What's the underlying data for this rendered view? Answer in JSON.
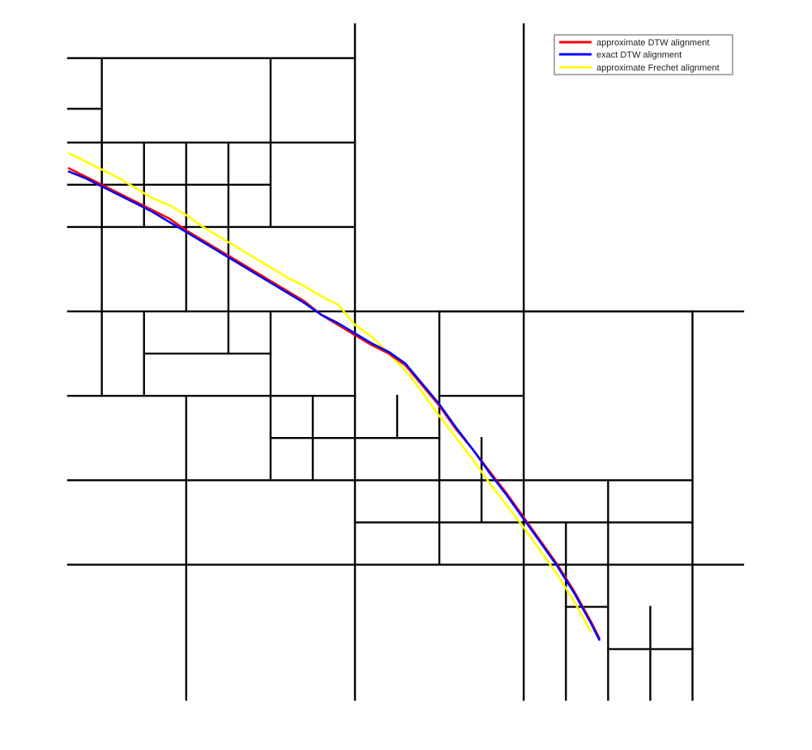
{
  "chart_data": {
    "type": "line",
    "title": "",
    "xlabel": "",
    "ylabel": "",
    "axes_visible": false,
    "xlim": [
      0,
      40
    ],
    "ylim": [
      0,
      40
    ],
    "legend": {
      "placement": "top-right"
    },
    "colors": {
      "approximate DTW alignment": "#ff0000",
      "exact DTW alignment": "#0000ff",
      "approximate Frechet alignment": "#ffff00",
      "partition": "#000000"
    },
    "partition_segments": [
      [
        [
          17,
          0
        ],
        [
          17,
          40
        ]
      ],
      [
        [
          27,
          0
        ],
        [
          27,
          40
        ]
      ],
      [
        [
          0,
          28
        ],
        [
          17,
          28
        ]
      ],
      [
        [
          0,
          38
        ],
        [
          17,
          38
        ]
      ],
      [
        [
          2,
          28
        ],
        [
          2,
          38
        ]
      ],
      [
        [
          12,
          28
        ],
        [
          12,
          38
        ]
      ],
      [
        [
          0,
          35
        ],
        [
          2,
          35
        ]
      ],
      [
        [
          0,
          33
        ],
        [
          17,
          33
        ]
      ],
      [
        [
          0,
          23
        ],
        [
          40,
          23
        ]
      ],
      [
        [
          0,
          18
        ],
        [
          17,
          18
        ]
      ],
      [
        [
          0,
          8
        ],
        [
          40,
          8
        ]
      ],
      [
        [
          2,
          18
        ],
        [
          2,
          33
        ]
      ],
      [
        [
          0,
          13
        ],
        [
          37,
          13
        ]
      ],
      [
        [
          7,
          0
        ],
        [
          7,
          18
        ]
      ],
      [
        [
          0,
          30.5
        ],
        [
          12,
          30.5
        ]
      ],
      [
        [
          4.5,
          28
        ],
        [
          4.5,
          33
        ]
      ],
      [
        [
          9.5,
          28
        ],
        [
          9.5,
          33
        ]
      ],
      [
        [
          7,
          23
        ],
        [
          7,
          33
        ]
      ],
      [
        [
          4.5,
          20.5
        ],
        [
          12,
          20.5
        ]
      ],
      [
        [
          4.5,
          18
        ],
        [
          4.5,
          23
        ]
      ],
      [
        [
          12,
          18
        ],
        [
          12,
          23
        ]
      ],
      [
        [
          9.5,
          20.5
        ],
        [
          9.5,
          28
        ]
      ],
      [
        [
          12,
          15.5
        ],
        [
          22,
          15.5
        ]
      ],
      [
        [
          12,
          13
        ],
        [
          12,
          18
        ]
      ],
      [
        [
          14.5,
          13
        ],
        [
          14.5,
          18
        ]
      ],
      [
        [
          22,
          23
        ],
        [
          37,
          23
        ]
      ],
      [
        [
          22,
          18
        ],
        [
          27,
          18
        ]
      ],
      [
        [
          22,
          13
        ],
        [
          22,
          23
        ]
      ],
      [
        [
          27,
          10.5
        ],
        [
          37,
          10.5
        ]
      ],
      [
        [
          17,
          10.5
        ],
        [
          27,
          10.5
        ]
      ],
      [
        [
          22,
          8
        ],
        [
          22,
          13
        ]
      ],
      [
        [
          24.5,
          10.5
        ],
        [
          24.5,
          15.5
        ]
      ],
      [
        [
          19.5,
          15.5
        ],
        [
          19.5,
          18
        ]
      ],
      [
        [
          32,
          0
        ],
        [
          32,
          13
        ]
      ],
      [
        [
          37,
          0
        ],
        [
          37,
          23
        ]
      ],
      [
        [
          29.5,
          0
        ],
        [
          29.5,
          10.5
        ]
      ],
      [
        [
          32,
          3
        ],
        [
          37,
          3
        ]
      ],
      [
        [
          34.5,
          0
        ],
        [
          34.5,
          5.5
        ]
      ],
      [
        [
          29.5,
          5.5
        ],
        [
          32,
          5.5
        ]
      ]
    ],
    "series": [
      {
        "name": "approximate DTW alignment",
        "x": [
          0,
          1,
          2,
          3,
          4,
          5,
          6,
          7,
          8,
          9,
          10,
          11,
          12,
          13,
          14,
          15,
          16,
          17,
          18,
          19,
          20,
          21,
          22,
          23,
          24,
          25,
          26,
          27,
          28,
          29,
          30,
          31,
          31.5
        ],
        "y": [
          31.5,
          31.0,
          30.5,
          30.0,
          29.5,
          29.0,
          28.5,
          27.8,
          27.2,
          26.6,
          26.0,
          25.4,
          24.8,
          24.2,
          23.6,
          22.8,
          22.2,
          21.6,
          21.0,
          20.5,
          19.8,
          18.6,
          17.4,
          16.0,
          14.8,
          13.5,
          12.2,
          10.8,
          9.4,
          8.0,
          6.4,
          4.6,
          3.6
        ]
      },
      {
        "name": "exact DTW alignment",
        "x": [
          0,
          1,
          2,
          3,
          4,
          5,
          6,
          7,
          8,
          9,
          10,
          11,
          12,
          13,
          14,
          15,
          16,
          17,
          18,
          19,
          20,
          21,
          22,
          23,
          24,
          25,
          26,
          27,
          28,
          29,
          30,
          31,
          31.5
        ],
        "y": [
          31.3,
          30.9,
          30.4,
          29.9,
          29.4,
          28.9,
          28.3,
          27.7,
          27.1,
          26.5,
          25.9,
          25.3,
          24.7,
          24.1,
          23.5,
          22.8,
          22.3,
          21.7,
          21.1,
          20.6,
          19.9,
          18.7,
          17.5,
          16.1,
          14.8,
          13.4,
          12.1,
          10.7,
          9.3,
          7.9,
          6.3,
          4.5,
          3.5
        ]
      },
      {
        "name": "approximate Frechet alignment",
        "x": [
          0,
          1,
          2,
          3,
          4,
          5,
          6,
          7,
          8,
          9,
          10,
          11,
          12,
          13,
          14,
          15,
          16,
          16.5,
          17,
          18,
          19,
          20,
          21,
          22,
          23,
          24,
          25,
          26,
          27,
          28,
          29,
          30,
          31
        ],
        "y": [
          32.4,
          31.9,
          31.4,
          30.9,
          30.3,
          29.7,
          29.3,
          28.7,
          28.0,
          27.4,
          26.8,
          26.2,
          25.6,
          25.0,
          24.5,
          23.9,
          23.4,
          22.8,
          22.2,
          21.5,
          20.5,
          19.5,
          18.2,
          16.8,
          15.5,
          14.2,
          12.8,
          11.5,
          10.2,
          8.8,
          7.4,
          5.8,
          4.0
        ]
      }
    ]
  }
}
